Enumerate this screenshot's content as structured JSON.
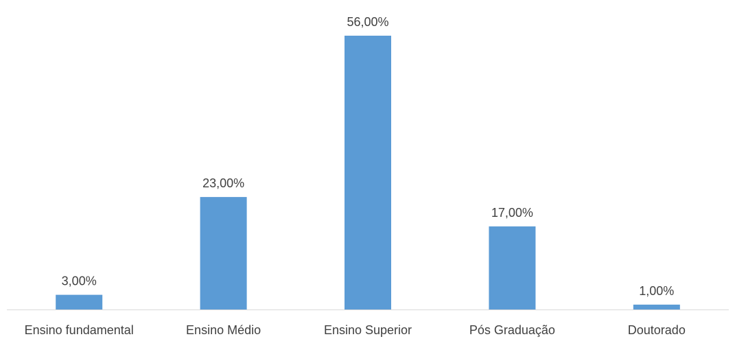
{
  "chart_data": {
    "type": "bar",
    "categories": [
      "Ensino fundamental",
      "Ensino Médio",
      "Ensino Superior",
      "Pós Graduação",
      "Doutorado"
    ],
    "values": [
      3,
      23,
      56,
      17,
      1
    ],
    "data_labels": [
      "3,00%",
      "23,00%",
      "56,00%",
      "17,00%",
      "1,00%"
    ],
    "unit": "%",
    "bar_color": "#5B9BD5",
    "axis_color": "#D9D9D9",
    "text_color": "#404040",
    "grid": false,
    "legend": "none",
    "ylim": [
      0,
      60
    ]
  }
}
